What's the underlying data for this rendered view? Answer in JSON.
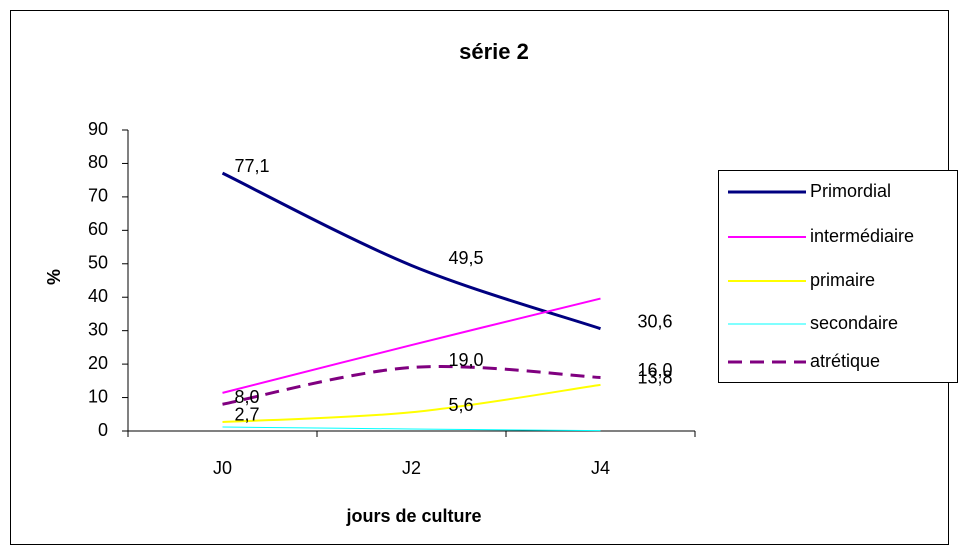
{
  "chart_data": {
    "type": "line",
    "title": "série 2",
    "x_label": "jours de culture",
    "y_label": "%",
    "categories": [
      "J0",
      "J2",
      "J4"
    ],
    "ylim": [
      0,
      90
    ],
    "yticks": [
      0,
      10,
      20,
      30,
      40,
      50,
      60,
      70,
      80,
      90
    ],
    "smooth": true,
    "series": [
      {
        "name": "Primordial",
        "color": "#000080",
        "width": 3,
        "dashed": false,
        "values": [
          77.1,
          49.5,
          30.6
        ],
        "value_labels": [
          "77,1",
          "49,5",
          "30,6"
        ]
      },
      {
        "name": "intermédiaire",
        "color": "#ff00ff",
        "width": 2,
        "dashed": false,
        "values": [
          11.4,
          25.7,
          39.6
        ]
      },
      {
        "name": "primaire",
        "color": "#ffff00",
        "width": 2,
        "dashed": false,
        "values": [
          2.7,
          5.6,
          13.8
        ],
        "value_labels": [
          "2,7",
          "5,6",
          "13,8"
        ]
      },
      {
        "name": "secondaire",
        "color": "#00ffff",
        "width": 1,
        "dashed": false,
        "values": [
          1.2,
          0.6,
          0.1
        ]
      },
      {
        "name": "atrétique",
        "color": "#800080",
        "width": 3,
        "dashed": true,
        "values": [
          8.0,
          19.0,
          16.0
        ],
        "value_labels": [
          "8,0",
          "19,0",
          "16,0"
        ]
      }
    ]
  }
}
